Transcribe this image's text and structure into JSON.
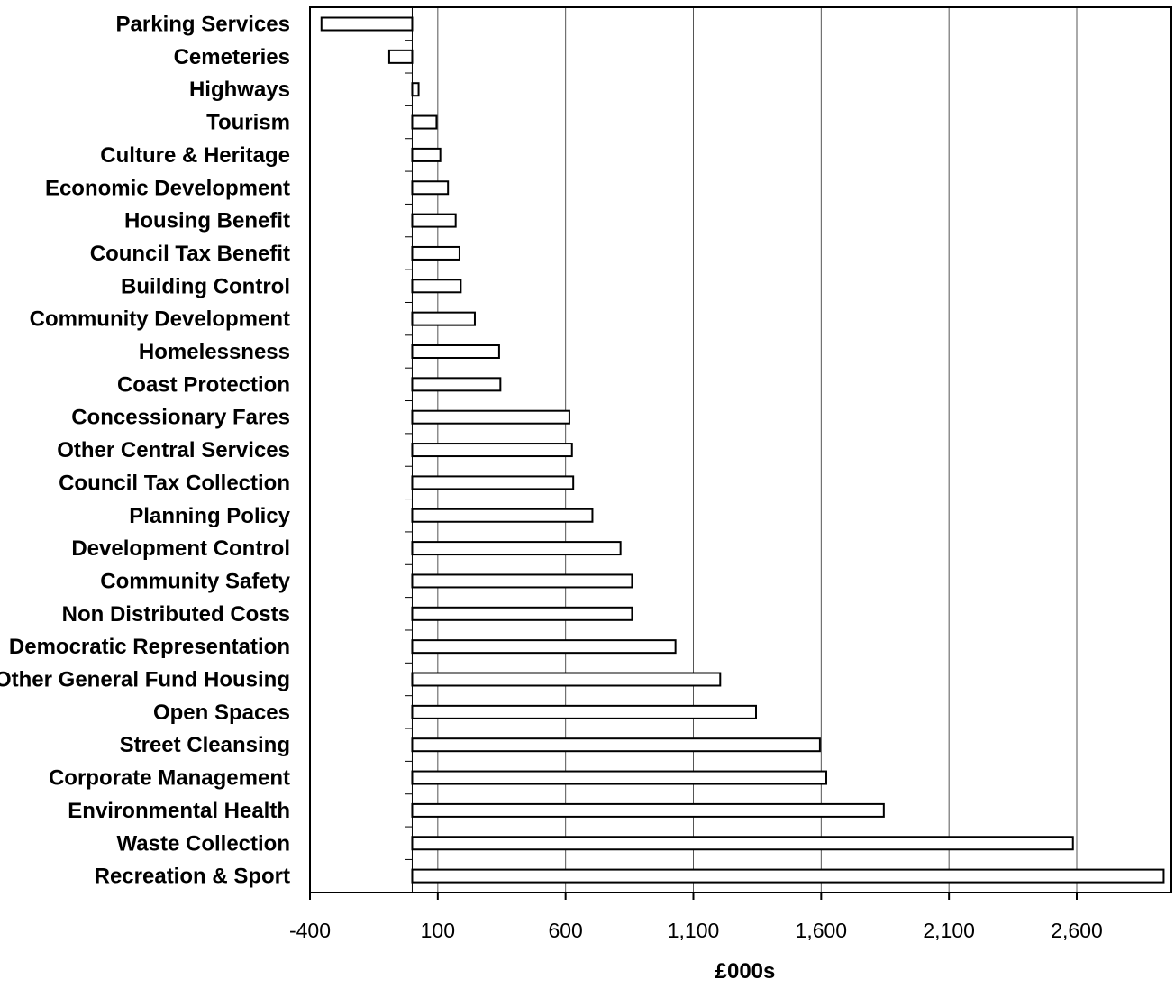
{
  "chart_data": {
    "type": "bar",
    "orientation": "horizontal",
    "xlabel": "£000s",
    "ylabel": "",
    "title": "",
    "xlim": [
      -400,
      3000
    ],
    "xticks": [
      -400,
      100,
      600,
      1100,
      1600,
      2100,
      2600
    ],
    "xtick_labels": [
      "-400",
      "100",
      "600",
      "1,100",
      "1,600",
      "2,100",
      "2,600"
    ],
    "grid": "vertical",
    "categories": [
      "Parking Services",
      "Cemeteries",
      "Highways",
      "Tourism",
      "Culture & Heritage",
      "Economic Development",
      "Housing Benefit",
      "Council Tax Benefit",
      "Building Control",
      "Community Development",
      "Homelessness",
      "Coast Protection",
      "Concessionary Fares",
      "Other Central Services",
      "Council Tax Collection",
      "Planning Policy",
      "Development Control",
      "Community Safety",
      "Non Distributed Costs",
      "Democratic Representation",
      "Other General Fund Housing",
      "Open Spaces",
      "Street Cleansing",
      "Corporate Management",
      "Environmental Health",
      "Waste Collection",
      "Recreation & Sport"
    ],
    "values": [
      -355,
      -90,
      25,
      95,
      110,
      140,
      170,
      185,
      190,
      245,
      340,
      345,
      615,
      625,
      630,
      705,
      815,
      860,
      860,
      1030,
      1205,
      1345,
      1595,
      1620,
      1845,
      2585,
      2940
    ]
  }
}
